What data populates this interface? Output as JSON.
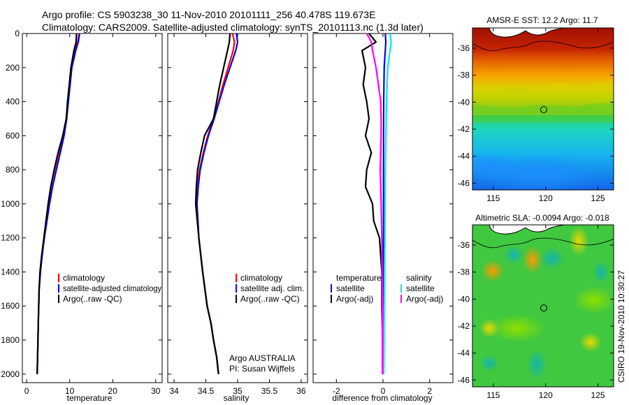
{
  "header": {
    "line1": "Argo profile: CS 5903238_30 11-Nov-2010 20101111_256 40.478S 119.673E",
    "line2": "Climatology: CARS2009. Satellite-adjusted climatology: synTS_20101113.nc (1.3d later)"
  },
  "chart_data": [
    {
      "type": "line",
      "xlabel": "temperature",
      "ylabel": "",
      "xlim": [
        -1,
        31.5
      ],
      "ylim": [
        2050,
        0
      ],
      "xticks": [
        0,
        10,
        20,
        30
      ],
      "xtick_labels": [
        "0",
        "10",
        "20",
        "30"
      ],
      "yticks": [
        0,
        200,
        400,
        600,
        800,
        1000,
        1200,
        1400,
        1600,
        1800,
        2000
      ],
      "ytick_labels": [
        "0",
        "200",
        "400",
        "600",
        "800",
        "1000",
        "1200",
        "1400",
        "1600",
        "1800",
        "2000"
      ],
      "legend": [
        "climatology",
        "satellite-adjusted climatology",
        "Argo(..raw -QC)"
      ],
      "series": [
        {
          "name": "climatology",
          "color": "#ff0000",
          "x": [
            12.2,
            11.9,
            11.2,
            10.4,
            10.0,
            9.6,
            9.3,
            8.6,
            7.7,
            6.8,
            6.0,
            5.3,
            4.7,
            4.1,
            3.6,
            3.2,
            2.9,
            2.7,
            2.55,
            2.45
          ],
          "y": [
            0,
            50,
            100,
            200,
            300,
            400,
            500,
            600,
            700,
            800,
            900,
            1000,
            1100,
            1200,
            1300,
            1400,
            1500,
            1700,
            1900,
            2000
          ]
        },
        {
          "name": "satellite-adjusted climatology",
          "color": "#0000ff",
          "x": [
            12.3,
            12.0,
            11.4,
            10.5,
            10.1,
            9.7,
            9.3,
            8.7,
            7.8,
            6.9,
            6.0,
            5.3,
            4.7,
            4.1,
            3.6,
            3.2,
            2.9,
            2.7,
            2.55,
            2.45
          ],
          "y": [
            0,
            50,
            100,
            200,
            300,
            400,
            500,
            600,
            700,
            800,
            900,
            1000,
            1100,
            1200,
            1300,
            1400,
            1500,
            1700,
            1900,
            2000
          ]
        },
        {
          "name": "Argo(..raw -QC)",
          "color": "#000000",
          "x": [
            11.6,
            11.5,
            11.0,
            10.3,
            9.9,
            9.5,
            9.2,
            8.4,
            7.3,
            6.4,
            5.6,
            5.0,
            4.5,
            4.0,
            3.5,
            3.1,
            2.9,
            2.7,
            2.55,
            2.45
          ],
          "y": [
            0,
            50,
            100,
            200,
            300,
            400,
            500,
            600,
            700,
            800,
            900,
            1000,
            1100,
            1200,
            1300,
            1400,
            1500,
            1700,
            1900,
            2000
          ]
        }
      ]
    },
    {
      "type": "line",
      "xlabel": "salinity",
      "ylabel": "",
      "xlim": [
        33.9,
        36.1
      ],
      "ylim": [
        2050,
        0
      ],
      "xticks": [
        34,
        34.5,
        35,
        35.5,
        36
      ],
      "xtick_labels": [
        "34",
        "34.5",
        "35",
        "35.5",
        "36"
      ],
      "legend": [
        "climatology",
        "satellite adj. clim.",
        "Argo(..raw -QC)"
      ],
      "annotations": [
        "Argo AUSTRALIA",
        "PI: Susan Wijffels"
      ],
      "series": [
        {
          "name": "climatology",
          "color": "#ff0000",
          "x": [
            34.92,
            34.95,
            34.93,
            34.85,
            34.77,
            34.7,
            34.62,
            34.53,
            34.46,
            34.4,
            34.37,
            34.36,
            34.39,
            34.45,
            34.52,
            34.58,
            34.62,
            34.67,
            34.7
          ],
          "y": [
            0,
            50,
            100,
            200,
            300,
            400,
            500,
            600,
            700,
            800,
            900,
            1000,
            1200,
            1400,
            1600,
            1700,
            1800,
            1900,
            2000
          ]
        },
        {
          "name": "satellite adj. clim.",
          "color": "#0000ff",
          "x": [
            34.98,
            35.0,
            34.97,
            34.88,
            34.79,
            34.71,
            34.63,
            34.54,
            34.47,
            34.41,
            34.38,
            34.36,
            34.39,
            34.45,
            34.52,
            34.58,
            34.62,
            34.67,
            34.7
          ],
          "y": [
            0,
            50,
            100,
            200,
            300,
            400,
            500,
            600,
            700,
            800,
            900,
            1000,
            1200,
            1400,
            1600,
            1700,
            1800,
            1900,
            2000
          ]
        },
        {
          "name": "Argo(..raw -QC)",
          "color": "#000000",
          "x": [
            34.88,
            34.87,
            34.84,
            34.78,
            34.72,
            34.67,
            34.62,
            34.48,
            34.42,
            34.37,
            34.35,
            34.34,
            34.39,
            34.45,
            34.52,
            34.58,
            34.62,
            34.67,
            34.7
          ],
          "y": [
            0,
            50,
            100,
            200,
            300,
            400,
            500,
            600,
            700,
            800,
            900,
            1000,
            1200,
            1400,
            1600,
            1700,
            1800,
            1900,
            2000
          ]
        }
      ]
    },
    {
      "type": "line",
      "xlabel": "difference from climatology",
      "ylabel": "",
      "xlim": [
        -3,
        3
      ],
      "ylim": [
        2050,
        0
      ],
      "xticks": [
        -2,
        0,
        2
      ],
      "xtick_labels": [
        "-2",
        "0",
        "2"
      ],
      "legend_titles": [
        "temperature",
        "salinity"
      ],
      "legend": [
        "satellite",
        "Argo(-adj)",
        "satellite",
        "Argo(-adj)"
      ],
      "series": [
        {
          "name": "temperature satellite",
          "color": "#0000ff",
          "x": [
            0.1,
            0.12,
            0.1,
            0.05,
            0.03,
            0.02,
            0.02,
            0.01,
            0.01,
            0.0
          ],
          "y": [
            0,
            50,
            100,
            200,
            400,
            800,
            1200,
            1600,
            1900,
            2000
          ]
        },
        {
          "name": "temperature Argo(-adj)",
          "color": "#000000",
          "x": [
            -0.6,
            -0.3,
            -0.9,
            -0.75,
            -0.85,
            -0.7,
            -0.6,
            -0.75,
            -0.5,
            -0.7,
            -0.75,
            -0.45,
            -0.4,
            -0.15,
            -0.05,
            -0.05,
            -0.02,
            -0.02
          ],
          "y": [
            0,
            50,
            100,
            200,
            300,
            400,
            500,
            600,
            700,
            800,
            900,
            1000,
            1100,
            1200,
            1400,
            1600,
            1800,
            2000
          ]
        },
        {
          "name": "salinity satellite",
          "color": "#00e5ff",
          "x": [
            0.3,
            0.35,
            0.3,
            0.2,
            0.15,
            0.1,
            0.08,
            0.05,
            0.04,
            0.03
          ],
          "y": [
            0,
            50,
            100,
            200,
            400,
            800,
            1200,
            1600,
            1900,
            2000
          ]
        },
        {
          "name": "salinity Argo(-adj)",
          "color": "#ff00ff",
          "x": [
            -0.7,
            -0.5,
            -0.45,
            -0.3,
            -0.1,
            -0.08,
            -0.08,
            -0.1,
            -0.12,
            -0.1,
            -0.08,
            -0.05,
            -0.03,
            -0.02
          ],
          "y": [
            0,
            50,
            100,
            200,
            400,
            500,
            600,
            700,
            800,
            900,
            1000,
            1200,
            1600,
            2000
          ]
        }
      ]
    },
    {
      "type": "heatmap",
      "title": "AMSR-E SST: 12.2 Argo: 11.7",
      "xlim": [
        113,
        126.5
      ],
      "ylim": [
        -46.5,
        -34.5
      ],
      "xticks": [
        115,
        120,
        125
      ],
      "xtick_labels": [
        "115",
        "120",
        "125"
      ],
      "yticks": [
        -36,
        -38,
        -40,
        -42,
        -44,
        -46
      ],
      "ytick_labels": [
        "-36",
        "-38",
        "-40",
        "-42",
        "-44",
        "-46"
      ],
      "marker": {
        "lon": 119.673,
        "lat": -40.478
      }
    },
    {
      "type": "heatmap",
      "title": "Altimetric SLA: -0.0094 Argo: -0.018",
      "xlim": [
        113,
        126.5
      ],
      "ylim": [
        -46.5,
        -34.5
      ],
      "xticks": [
        115,
        120,
        125
      ],
      "xtick_labels": [
        "115",
        "120",
        "125"
      ],
      "yticks": [
        -36,
        -38,
        -40,
        -42,
        -44,
        -46
      ],
      "ytick_labels": [
        "-36",
        "-38",
        "-40",
        "-42",
        "-44",
        "-46"
      ],
      "marker": {
        "lon": 119.673,
        "lat": -40.478
      }
    }
  ],
  "footer": {
    "credit": "CSIRO 19-Nov-2010 10:30:27"
  }
}
